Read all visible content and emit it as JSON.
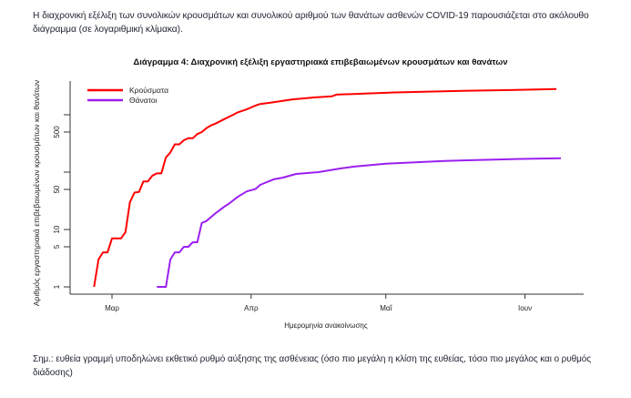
{
  "intro_text": "Η διαχρονική εξέλιξη των συνολικών κρουσμάτων και συνολικού αριθμού των θανάτων ασθενών COVID-19 παρουσιάζεται στο ακόλουθο διάγραμμα (σε λογαριθμική κλίμακα).",
  "footnote": "Σημ.: ευθεία γραμμή υποδηλώνει εκθετικό ρυθμό αύξησης της ασθένειας (όσο πιο μεγάλη η κλίση της ευθείας, τόσο πιο μεγάλος και ο ρυθμός διάδοσης)",
  "chart_data": {
    "type": "line",
    "title": "Διάγραμμα 4: Διαχρονική εξέλιξη εργαστηριακά επιβεβαιωμένων κρουσμάτων και θανάτων",
    "xlabel": "Ημερομηνία ανακοίνωσης",
    "ylabel": "Αριθμός εργαστηριακά επιβεβαιωμένων κρουσμάτων και θανάτων",
    "x_unit": "days since 1 March",
    "yscale": "log",
    "ylim": [
      1,
      3500
    ],
    "xlim": [
      -9,
      105
    ],
    "xticks": [
      {
        "value": 0,
        "label": "Μαρ"
      },
      {
        "value": 31,
        "label": "Απρ"
      },
      {
        "value": 61,
        "label": "Μαΐ"
      },
      {
        "value": 92,
        "label": "Ιουν"
      }
    ],
    "yticks": [
      {
        "value": 1,
        "label": "1"
      },
      {
        "value": 5,
        "label": "5"
      },
      {
        "value": 10,
        "label": "10"
      },
      {
        "value": 50,
        "label": "50"
      },
      {
        "value": 100,
        "label": ""
      },
      {
        "value": 500,
        "label": "500"
      },
      {
        "value": 1000,
        "label": ""
      }
    ],
    "legend_position": "top-left",
    "series": [
      {
        "name": "Κρούσματα",
        "color": "#ff0000",
        "x": [
          -4,
          -3,
          -2,
          -1,
          0,
          2,
          3,
          4,
          5,
          6,
          7,
          8,
          9,
          10,
          11,
          12,
          13,
          14,
          15,
          16,
          17,
          18,
          19,
          20,
          21,
          22,
          23,
          25,
          27,
          28,
          30,
          32,
          33,
          36,
          40,
          45,
          49,
          50,
          63,
          77,
          90,
          99
        ],
        "y": [
          1,
          3,
          4,
          4,
          7,
          7,
          9,
          30,
          44,
          45,
          69,
          69,
          87,
          95,
          95,
          180,
          220,
          305,
          305,
          360,
          390,
          390,
          460,
          500,
          580,
          650,
          700,
          840,
          1000,
          1100,
          1240,
          1450,
          1540,
          1650,
          1850,
          2000,
          2100,
          2240,
          2450,
          2600,
          2700,
          2800
        ]
      },
      {
        "name": "Θάνατοι",
        "color": "#9b1ff0",
        "x": [
          10,
          12,
          13,
          14,
          15,
          16,
          17,
          18,
          19,
          20,
          21,
          23,
          25,
          26,
          28,
          30,
          32,
          33,
          36,
          38,
          41,
          46,
          51,
          54,
          61,
          74,
          91,
          100
        ],
        "y": [
          1,
          1,
          3,
          4,
          4,
          5,
          5,
          6,
          6,
          13,
          14,
          19,
          25,
          28,
          37,
          46,
          51,
          60,
          75,
          80,
          93,
          100,
          116,
          125,
          140,
          157,
          170,
          175
        ]
      }
    ]
  }
}
